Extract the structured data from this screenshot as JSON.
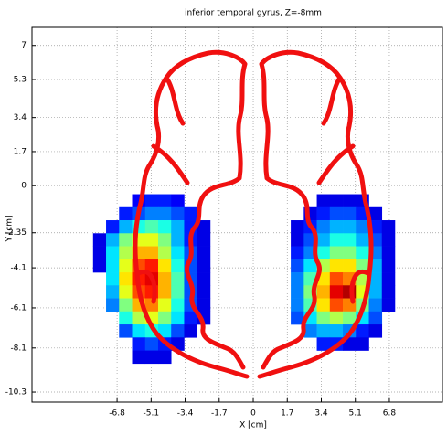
{
  "chart_data": {
    "type": "heatmap",
    "title": "inferior temporal gyrus, Z=-8mm",
    "xlabel": "X [cm]",
    "ylabel": "Y [cm]",
    "colormap": "jet",
    "clim": [
      0,
      1
    ],
    "cell_width": 0.65,
    "cell_height": 0.65,
    "x": [
      -7.675,
      -7.025,
      -6.375,
      -5.725,
      -5.075,
      -4.425,
      -3.775,
      -3.125,
      -2.475,
      -1.825,
      2.2,
      2.85,
      3.5,
      4.15,
      4.8,
      5.45,
      6.1,
      6.75
    ],
    "y": [
      -0.75,
      -1.4,
      -2.05,
      -2.7,
      -3.35,
      -4.0,
      -4.65,
      -5.3,
      -5.95,
      -6.6,
      -7.25,
      -7.9,
      -8.55
    ],
    "values": [
      [
        null,
        null,
        null,
        0.12,
        0.15,
        0.15,
        0.12,
        null,
        null,
        null,
        null,
        null,
        0.1,
        0.1,
        0.1,
        0.1,
        null,
        null
      ],
      [
        null,
        null,
        0.15,
        0.2,
        0.25,
        0.25,
        0.2,
        0.15,
        null,
        null,
        null,
        0.1,
        0.15,
        0.2,
        0.2,
        0.15,
        0.1,
        null
      ],
      [
        null,
        0.15,
        0.3,
        0.4,
        0.45,
        0.4,
        0.3,
        0.15,
        0.1,
        null,
        0.1,
        0.15,
        0.25,
        0.3,
        0.3,
        0.25,
        0.15,
        0.1
      ],
      [
        0.1,
        0.3,
        0.5,
        0.6,
        0.6,
        0.5,
        0.3,
        0.15,
        0.1,
        null,
        0.1,
        0.2,
        0.3,
        0.4,
        0.4,
        0.3,
        0.2,
        0.1
      ],
      [
        0.1,
        0.35,
        0.55,
        0.7,
        0.7,
        0.55,
        0.35,
        0.2,
        0.1,
        null,
        0.15,
        0.25,
        0.4,
        0.5,
        0.5,
        0.4,
        0.25,
        0.1
      ],
      [
        0.1,
        0.35,
        0.6,
        0.8,
        0.85,
        0.65,
        0.4,
        0.2,
        0.1,
        null,
        0.2,
        0.35,
        0.55,
        0.65,
        0.65,
        0.5,
        0.3,
        0.1
      ],
      [
        null,
        0.35,
        0.65,
        0.85,
        0.9,
        0.7,
        0.45,
        0.2,
        0.1,
        null,
        0.25,
        0.45,
        0.65,
        0.8,
        0.75,
        0.55,
        0.3,
        0.1
      ],
      [
        null,
        0.3,
        0.6,
        0.8,
        0.85,
        0.7,
        0.45,
        0.2,
        0.1,
        null,
        0.25,
        0.5,
        0.7,
        0.9,
        0.95,
        0.6,
        0.3,
        0.1
      ],
      [
        null,
        0.25,
        0.5,
        0.7,
        0.75,
        0.6,
        0.4,
        0.2,
        0.1,
        null,
        0.25,
        0.45,
        0.65,
        0.8,
        0.75,
        0.5,
        0.25,
        0.1
      ],
      [
        null,
        null,
        0.4,
        0.55,
        0.6,
        0.5,
        0.35,
        0.15,
        0.1,
        null,
        0.2,
        0.35,
        0.5,
        0.55,
        0.5,
        0.35,
        0.2,
        null
      ],
      [
        null,
        null,
        0.2,
        0.35,
        0.4,
        0.35,
        0.2,
        0.1,
        null,
        null,
        null,
        0.25,
        0.3,
        0.3,
        0.25,
        0.15,
        0.1,
        null
      ],
      [
        null,
        null,
        null,
        0.15,
        0.2,
        0.15,
        0.1,
        null,
        null,
        null,
        null,
        null,
        0.15,
        0.15,
        0.1,
        0.1,
        null,
        null
      ],
      [
        null,
        null,
        null,
        0.1,
        0.1,
        0.1,
        null,
        null,
        null,
        null,
        null,
        null,
        null,
        null,
        null,
        null,
        null,
        null
      ]
    ],
    "xlim": [
      -11.05,
      9.45
    ],
    "ylim": [
      -10.8,
      7.9
    ],
    "xticks": [
      -6.8,
      -5.1,
      -3.4,
      -1.7,
      0,
      1.7,
      3.4,
      5.1,
      6.8
    ],
    "yticks": [
      7,
      5.3,
      3.4,
      1.7,
      0,
      -2.35,
      -4.1,
      -6.1,
      -8.1,
      -10.3
    ],
    "grid": true
  }
}
